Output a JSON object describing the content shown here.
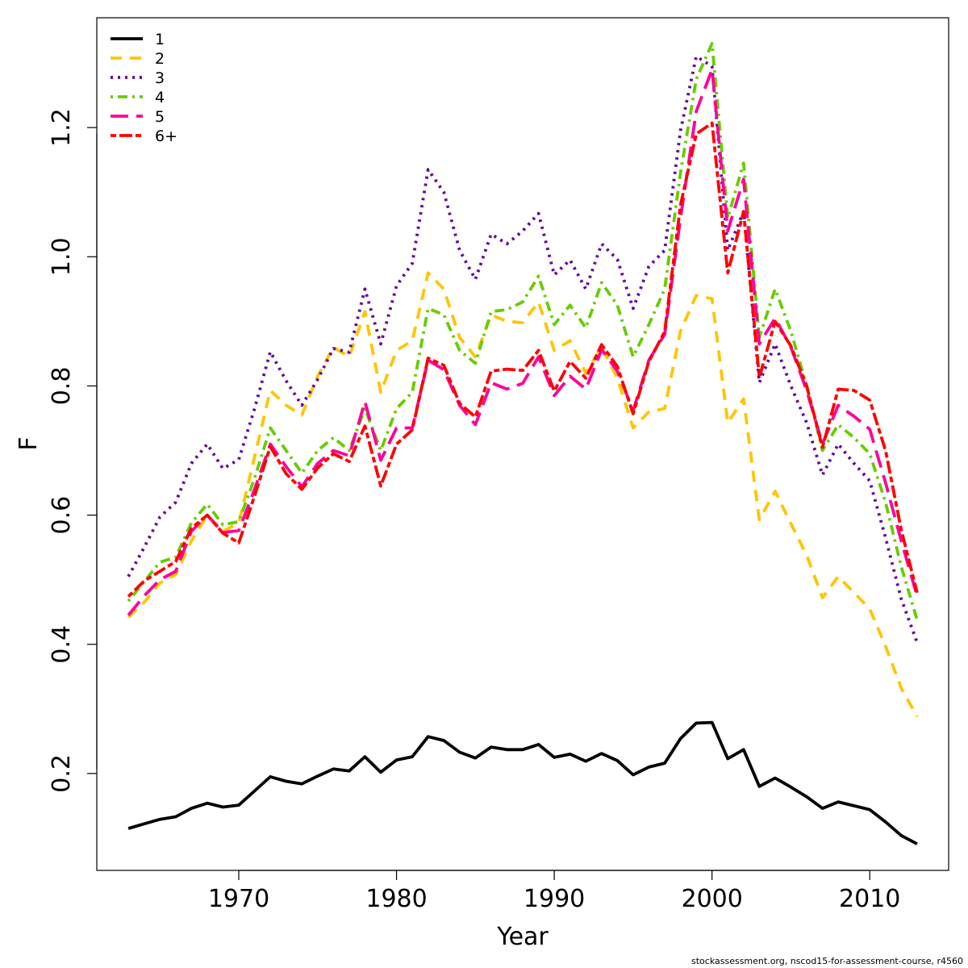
{
  "chart_data": {
    "type": "line",
    "title": "",
    "xlabel": "Year",
    "ylabel": "F",
    "xlim": [
      1961,
      2015
    ],
    "ylim": [
      0.05,
      1.37
    ],
    "x_ticks": [
      1970,
      1980,
      1990,
      2000,
      2010
    ],
    "y_ticks": [
      0.2,
      0.4,
      0.6,
      0.8,
      1.0,
      1.2
    ],
    "y_tick_labels": [
      "0.2",
      "0.4",
      "0.6",
      "0.8",
      "1.0",
      "1.2"
    ],
    "legend_position": "top-left",
    "grid": false,
    "x": [
      1963,
      1964,
      1965,
      1966,
      1967,
      1968,
      1969,
      1970,
      1971,
      1972,
      1973,
      1974,
      1975,
      1976,
      1977,
      1978,
      1979,
      1980,
      1981,
      1982,
      1983,
      1984,
      1985,
      1986,
      1987,
      1988,
      1989,
      1990,
      1991,
      1992,
      1993,
      1994,
      1995,
      1996,
      1997,
      1998,
      1999,
      2000,
      2001,
      2002,
      2003,
      2004,
      2005,
      2006,
      2007,
      2008,
      2009,
      2010,
      2011,
      2012,
      2013
    ],
    "series": [
      {
        "name": "1",
        "color": "#000000",
        "dash": "solid",
        "values": [
          0.115,
          0.122,
          0.129,
          0.133,
          0.146,
          0.154,
          0.148,
          0.151,
          0.173,
          0.195,
          0.188,
          0.184,
          0.196,
          0.207,
          0.204,
          0.226,
          0.202,
          0.221,
          0.226,
          0.257,
          0.251,
          0.233,
          0.224,
          0.241,
          0.237,
          0.237,
          0.245,
          0.225,
          0.23,
          0.219,
          0.231,
          0.22,
          0.198,
          0.21,
          0.216,
          0.254,
          0.278,
          0.279,
          0.223,
          0.237,
          0.18,
          0.193,
          0.179,
          0.164,
          0.146,
          0.156,
          0.15,
          0.144,
          0.125,
          0.104,
          0.091
        ]
      },
      {
        "name": "2",
        "color": "#FFC400",
        "dash": "dashed",
        "values": [
          0.442,
          0.465,
          0.495,
          0.508,
          0.56,
          0.6,
          0.575,
          0.588,
          0.69,
          0.793,
          0.77,
          0.755,
          0.815,
          0.86,
          0.845,
          0.915,
          0.79,
          0.855,
          0.87,
          0.975,
          0.95,
          0.875,
          0.845,
          0.91,
          0.9,
          0.898,
          0.93,
          0.855,
          0.87,
          0.82,
          0.86,
          0.812,
          0.735,
          0.76,
          0.765,
          0.885,
          0.94,
          0.935,
          0.743,
          0.78,
          0.593,
          0.637,
          0.587,
          0.538,
          0.472,
          0.505,
          0.48,
          0.455,
          0.397,
          0.332,
          0.288
        ]
      },
      {
        "name": "3",
        "color": "#660099",
        "dash": "dotted",
        "values": [
          0.505,
          0.55,
          0.597,
          0.62,
          0.68,
          0.71,
          0.672,
          0.686,
          0.765,
          0.853,
          0.808,
          0.77,
          0.81,
          0.858,
          0.852,
          0.95,
          0.865,
          0.955,
          0.99,
          1.135,
          1.1,
          1.01,
          0.965,
          1.035,
          1.02,
          1.04,
          1.067,
          0.972,
          0.995,
          0.95,
          1.02,
          0.996,
          0.92,
          0.985,
          1.01,
          1.195,
          1.31,
          1.295,
          1.01,
          1.07,
          0.805,
          0.865,
          0.8,
          0.743,
          0.662,
          0.71,
          0.68,
          0.653,
          0.565,
          0.47,
          0.403
        ]
      },
      {
        "name": "4",
        "color": "#66CC00",
        "dash": "dashdot",
        "values": [
          0.467,
          0.497,
          0.527,
          0.535,
          0.588,
          0.617,
          0.585,
          0.59,
          0.657,
          0.735,
          0.7,
          0.665,
          0.7,
          0.72,
          0.7,
          0.765,
          0.7,
          0.765,
          0.79,
          0.92,
          0.91,
          0.855,
          0.835,
          0.915,
          0.918,
          0.93,
          0.97,
          0.895,
          0.925,
          0.89,
          0.96,
          0.925,
          0.845,
          0.895,
          0.95,
          1.13,
          1.275,
          1.33,
          1.06,
          1.145,
          0.875,
          0.95,
          0.885,
          0.8,
          0.7,
          0.74,
          0.72,
          0.695,
          0.62,
          0.52,
          0.438
        ]
      },
      {
        "name": "5",
        "color": "#FF0099",
        "dash": "longdash",
        "values": [
          0.445,
          0.475,
          0.5,
          0.513,
          0.575,
          0.6,
          0.573,
          0.576,
          0.64,
          0.71,
          0.675,
          0.644,
          0.68,
          0.7,
          0.692,
          0.776,
          0.685,
          0.735,
          0.735,
          0.84,
          0.825,
          0.77,
          0.74,
          0.805,
          0.795,
          0.804,
          0.845,
          0.785,
          0.815,
          0.795,
          0.856,
          0.823,
          0.762,
          0.84,
          0.88,
          1.06,
          1.225,
          1.29,
          1.04,
          1.12,
          0.865,
          0.905,
          0.86,
          0.793,
          0.71,
          0.77,
          0.753,
          0.733,
          0.65,
          0.56,
          0.475
        ]
      },
      {
        "name": "6+",
        "color": "#FF0000",
        "dash": "twodash",
        "values": [
          0.474,
          0.498,
          0.513,
          0.528,
          0.58,
          0.6,
          0.572,
          0.557,
          0.63,
          0.706,
          0.664,
          0.64,
          0.673,
          0.695,
          0.683,
          0.738,
          0.645,
          0.71,
          0.732,
          0.843,
          0.832,
          0.773,
          0.752,
          0.823,
          0.826,
          0.824,
          0.855,
          0.792,
          0.838,
          0.812,
          0.864,
          0.83,
          0.757,
          0.838,
          0.884,
          1.08,
          1.19,
          1.207,
          0.975,
          1.07,
          0.813,
          0.9,
          0.862,
          0.8,
          0.705,
          0.795,
          0.793,
          0.778,
          0.7,
          0.577,
          0.48
        ]
      }
    ]
  },
  "footer": "stockassessment.org, nscod15-for-assessment-course, r4560"
}
